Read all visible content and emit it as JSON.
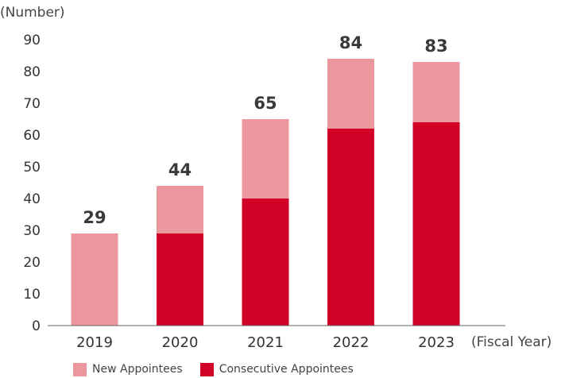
{
  "chart_data": {
    "type": "bar",
    "stacked": true,
    "title": "",
    "ylabel": "(Number)",
    "xlabel": "(Fiscal Year)",
    "categories": [
      "2019",
      "2020",
      "2021",
      "2022",
      "2023"
    ],
    "ylim": [
      0,
      90
    ],
    "yticks": [
      "0",
      "10",
      "20",
      "30",
      "40",
      "50",
      "60",
      "70",
      "80",
      "90"
    ],
    "totals": [
      "29",
      "44",
      "65",
      "84",
      "83"
    ],
    "series": [
      {
        "name": "Consecutive Appointees",
        "color": "#d10027",
        "values": [
          0,
          29,
          40,
          62,
          64
        ]
      },
      {
        "name": "New Appointees",
        "color": "#eb979e",
        "values": [
          29,
          15,
          25,
          22,
          19
        ]
      }
    ],
    "legend_order": [
      "New Appointees",
      "Consecutive Appointees"
    ],
    "legend_position": "bottom-left",
    "grid": false
  }
}
